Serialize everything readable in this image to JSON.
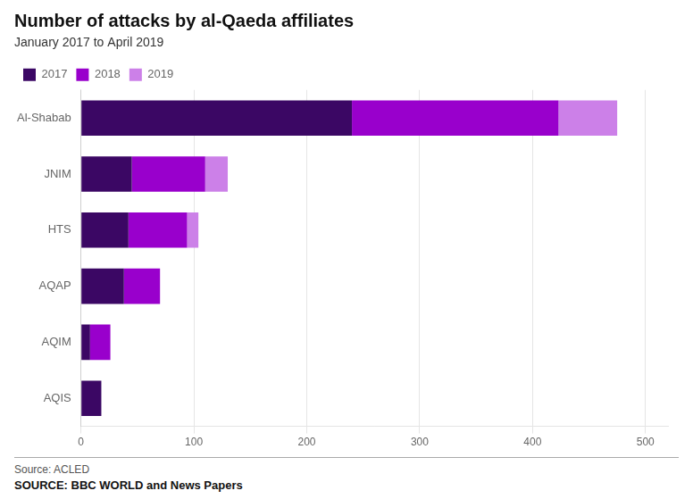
{
  "chart_data": {
    "type": "bar",
    "orientation": "horizontal",
    "stacked": true,
    "title": "Number of attacks by al-Qaeda affiliates",
    "subtitle": "January 2017 to April 2019",
    "categories": [
      "Al-Shabab",
      "JNIM",
      "HTS",
      "AQAP",
      "AQIM",
      "AQIS"
    ],
    "series": [
      {
        "name": "2017",
        "color": "#3b0764",
        "values": [
          240,
          45,
          42,
          38,
          8,
          18
        ]
      },
      {
        "name": "2018",
        "color": "#9900cc",
        "values": [
          183,
          65,
          52,
          32,
          18,
          0
        ]
      },
      {
        "name": "2019",
        "color": "#cc80e8",
        "values": [
          52,
          20,
          10,
          0,
          0,
          0
        ]
      }
    ],
    "xlim": [
      0,
      520
    ],
    "xticks": [
      0,
      100,
      200,
      300,
      400,
      500
    ],
    "grid": true,
    "legend": "upper left",
    "annotations": [
      "Source: ACLED",
      "SOURCE: BBC WORLD  and News Papers"
    ]
  }
}
